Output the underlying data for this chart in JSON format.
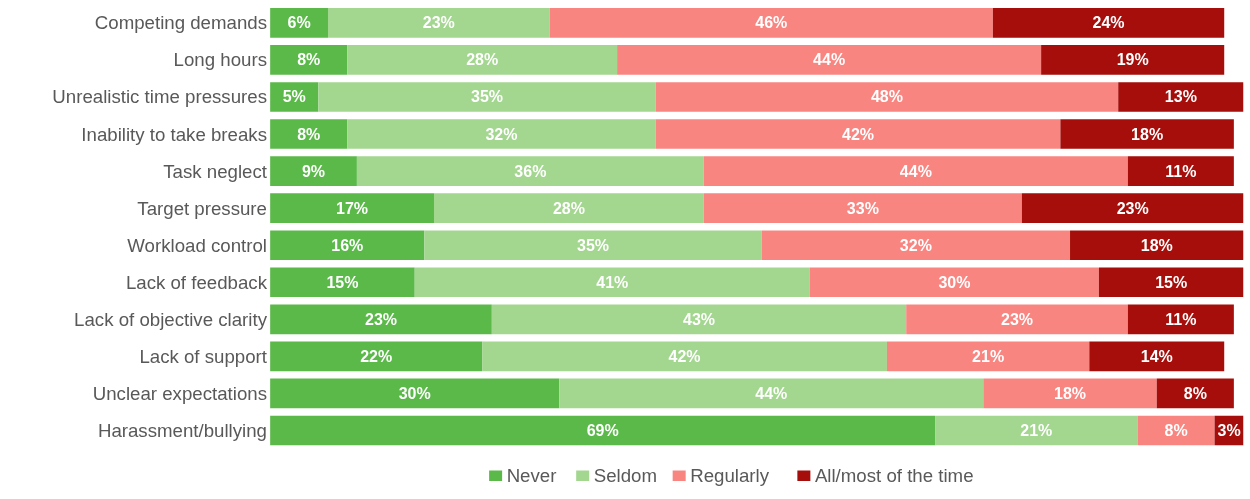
{
  "chart_data": {
    "type": "bar",
    "orientation": "horizontal",
    "stacked": true,
    "legend": "bottom",
    "categories": [
      "Competing demands",
      "Long hours",
      "Unrealistic time pressures",
      "Inability to take breaks",
      "Task neglect",
      "Target pressure",
      "Workload control",
      "Lack of feedback",
      "Lack of objective clarity",
      "Lack of support",
      "Unclear expectations",
      "Harassment/bullying"
    ],
    "series": [
      {
        "name": "Never",
        "color": "#5bb94a",
        "values": [
          6,
          8,
          5,
          8,
          9,
          17,
          16,
          15,
          23,
          22,
          30,
          69
        ],
        "value_labels": [
          "6%",
          "8%",
          "5%",
          "8%",
          "9%",
          "17%",
          "16%",
          "15%",
          "23%",
          "22%",
          "30%",
          "69%"
        ]
      },
      {
        "name": "Seldom",
        "color": "#a3d68f",
        "values": [
          23,
          28,
          35,
          32,
          36,
          28,
          35,
          41,
          43,
          42,
          44,
          21
        ],
        "value_labels": [
          "23%",
          "28%",
          "35%",
          "32%",
          "36%",
          "28%",
          "35%",
          "41%",
          "43%",
          "42%",
          "44%",
          "21%"
        ]
      },
      {
        "name": "Regularly",
        "color": "#f88580",
        "values": [
          46,
          44,
          48,
          42,
          44,
          33,
          32,
          30,
          23,
          21,
          18,
          8
        ],
        "value_labels": [
          "46%",
          "44%",
          "48%",
          "42%",
          "44%",
          "33%",
          "32%",
          "30%",
          "23%",
          "21%",
          "18%",
          "8%"
        ]
      },
      {
        "name": "All/most of the time",
        "color": "#a50e0a",
        "values": [
          24,
          19,
          13,
          18,
          11,
          23,
          18,
          15,
          11,
          14,
          8,
          3
        ],
        "value_labels": [
          "24%",
          "19%",
          "13%",
          "18%",
          "11%",
          "23%",
          "18%",
          "15%",
          "11%",
          "14%",
          "8%",
          "3%"
        ]
      }
    ]
  }
}
